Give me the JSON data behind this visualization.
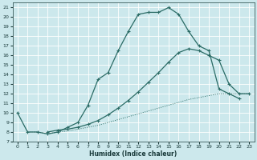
{
  "xlabel": "Humidex (Indice chaleur)",
  "bg_color": "#cce8ec",
  "grid_color": "#ffffff",
  "line_color": "#2a6b65",
  "xlim": [
    -0.5,
    23.5
  ],
  "ylim": [
    7,
    21.5
  ],
  "ytick_labels": [
    "7",
    "8",
    "9",
    "10",
    "11",
    "12",
    "13",
    "14",
    "15",
    "16",
    "17",
    "18",
    "19",
    "20",
    "21"
  ],
  "ytick_vals": [
    7,
    8,
    9,
    10,
    11,
    12,
    13,
    14,
    15,
    16,
    17,
    18,
    19,
    20,
    21
  ],
  "xtick_vals": [
    0,
    1,
    2,
    3,
    4,
    5,
    6,
    7,
    8,
    9,
    10,
    11,
    12,
    13,
    14,
    15,
    16,
    17,
    18,
    19,
    20,
    21,
    22,
    23
  ],
  "line1_x": [
    0,
    1,
    2,
    3,
    4,
    5,
    6,
    7,
    8,
    9,
    10,
    11,
    12,
    13,
    14,
    15,
    16,
    17,
    18,
    19,
    20,
    21,
    22
  ],
  "line1_y": [
    10,
    8.0,
    8.0,
    7.8,
    8.0,
    8.5,
    9.0,
    10.8,
    13.5,
    14.2,
    16.5,
    18.5,
    20.3,
    20.5,
    20.5,
    21.0,
    20.3,
    18.5,
    17.0,
    16.5,
    12.5,
    12.0,
    11.5
  ],
  "line2_x": [
    3,
    4,
    5,
    6,
    7,
    8,
    9,
    10,
    11,
    12,
    13,
    14,
    15,
    16,
    17,
    18,
    19,
    20,
    21,
    22,
    23
  ],
  "line2_y": [
    8.0,
    8.2,
    8.3,
    8.5,
    8.8,
    9.2,
    9.8,
    10.5,
    11.3,
    12.2,
    13.2,
    14.2,
    15.3,
    16.3,
    16.7,
    16.5,
    16.0,
    15.5,
    13.0,
    12.0,
    12.0
  ],
  "line3_x": [
    1,
    2,
    3,
    4,
    5,
    6,
    7,
    8,
    9,
    10,
    11,
    12,
    13,
    14,
    15,
    16,
    17,
    18,
    19,
    20,
    21,
    22,
    23
  ],
  "line3_y": [
    8.0,
    8.0,
    7.8,
    8.0,
    8.1,
    8.3,
    8.5,
    8.7,
    9.0,
    9.3,
    9.6,
    9.9,
    10.2,
    10.5,
    10.8,
    11.1,
    11.4,
    11.6,
    11.8,
    12.0,
    12.0,
    12.0,
    12.0
  ]
}
